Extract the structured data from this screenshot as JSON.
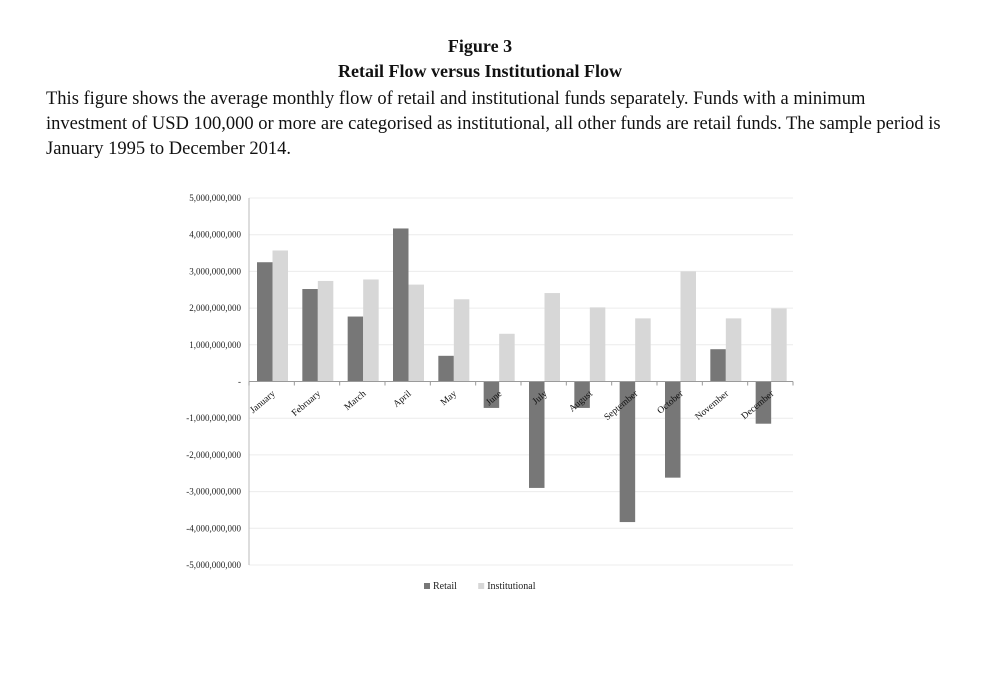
{
  "figure": {
    "label": "Figure 3",
    "title": "Retail Flow versus Institutional Flow",
    "caption": "This figure shows the average monthly flow of retail and institutional funds separately. Funds with a minimum investment of USD 100,000 or more are categorised as institutional, all other funds are retail funds. The sample period is January 1995 to December 2014."
  },
  "chart_data": {
    "type": "bar",
    "categories": [
      "January",
      "February",
      "March",
      "April",
      "May",
      "June",
      "July",
      "August",
      "September",
      "October",
      "November",
      "December"
    ],
    "series": [
      {
        "name": "Retail",
        "color": "#777777",
        "values": [
          3250000000,
          2520000000,
          1770000000,
          4170000000,
          700000000,
          -720000000,
          -2900000000,
          -720000000,
          -3830000000,
          -2620000000,
          880000000,
          -1150000000
        ]
      },
      {
        "name": "Institutional",
        "color": "#d7d7d7",
        "values": [
          3570000000,
          2740000000,
          2780000000,
          2640000000,
          2240000000,
          1300000000,
          2410000000,
          2020000000,
          1720000000,
          3000000000,
          1720000000,
          1990000000
        ]
      }
    ],
    "ylim": [
      -5000000000,
      5000000000
    ],
    "yticks": [
      {
        "value": 5000000000,
        "label": "5,000,000,000"
      },
      {
        "value": 4000000000,
        "label": "4,000,000,000"
      },
      {
        "value": 3000000000,
        "label": "3,000,000,000"
      },
      {
        "value": 2000000000,
        "label": "2,000,000,000"
      },
      {
        "value": 1000000000,
        "label": "1,000,000,000"
      },
      {
        "value": 0,
        "label": "-"
      },
      {
        "value": -1000000000,
        "label": "-1,000,000,000"
      },
      {
        "value": -2000000000,
        "label": "-2,000,000,000"
      },
      {
        "value": -3000000000,
        "label": "-3,000,000,000"
      },
      {
        "value": -4000000000,
        "label": "-4,000,000,000"
      },
      {
        "value": -5000000000,
        "label": "-5,000,000,000"
      }
    ],
    "xlabel": "",
    "ylabel": "",
    "grid": true,
    "legend": "bottom"
  }
}
